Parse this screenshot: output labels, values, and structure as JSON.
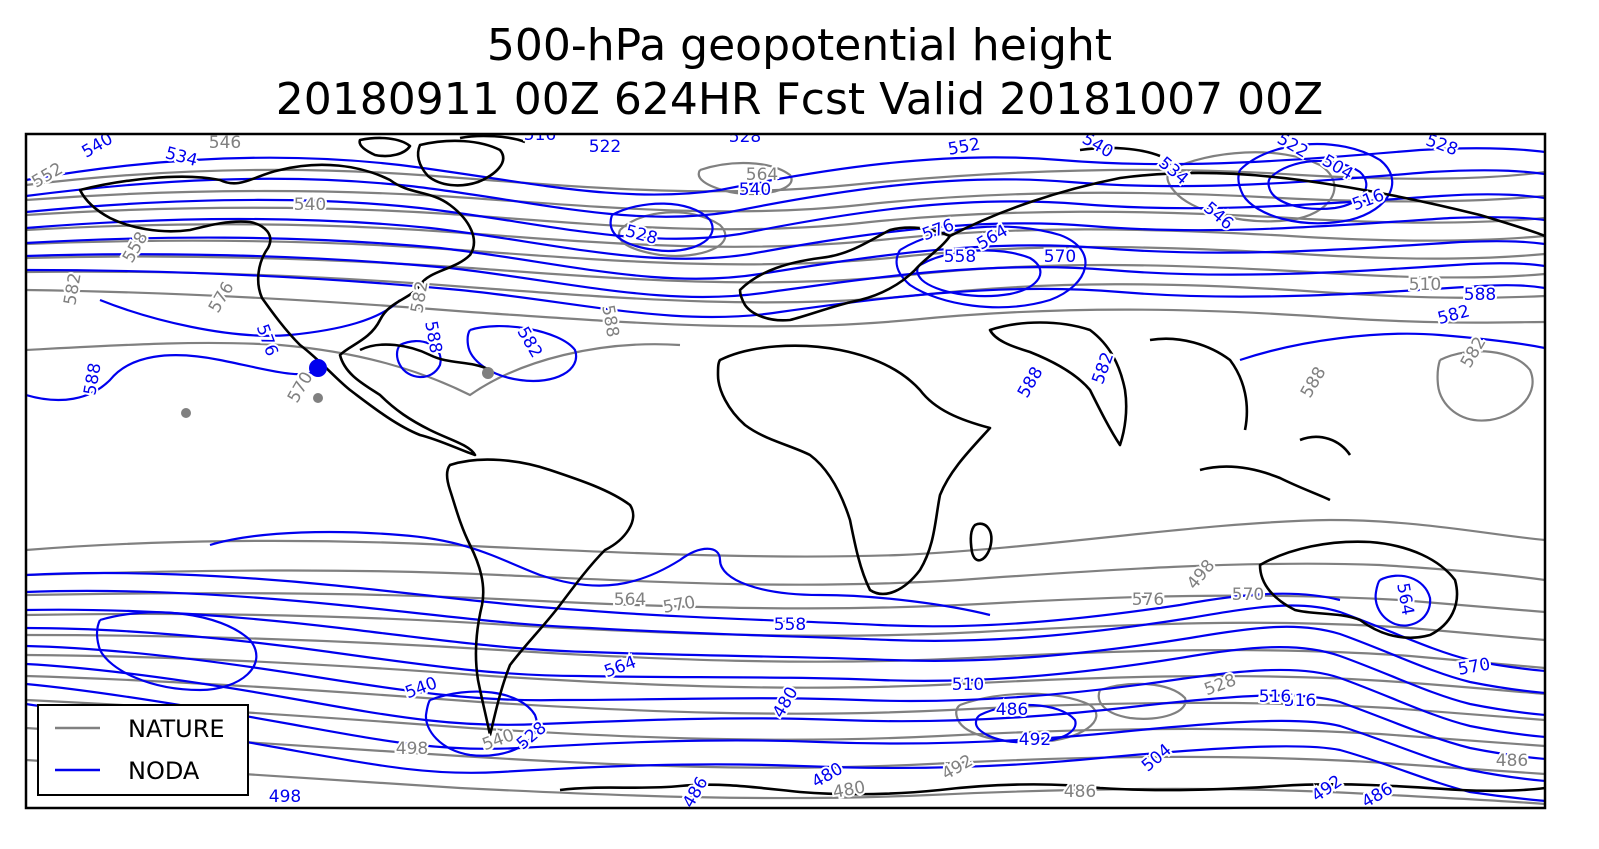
{
  "title_line1": "500-hPa geopotential height",
  "title_line2": "20180911 00Z 624HR Fcst Valid 20181007 00Z",
  "legend": [
    {
      "label": "NATURE",
      "color": "#808080"
    },
    {
      "label": "NODA",
      "color": "#0000ee"
    }
  ],
  "colors": {
    "nature": "#808080",
    "noda": "#0000ee",
    "coast": "#000000"
  },
  "contour_labels": {
    "noda": [
      "540",
      "534",
      "516",
      "522",
      "528",
      "540",
      "552",
      "540",
      "534",
      "546",
      "528",
      "504",
      "516",
      "522",
      "528",
      "576",
      "564",
      "558",
      "570",
      "576",
      "588",
      "582",
      "588",
      "588",
      "582",
      "588",
      "582",
      "564",
      "510",
      "540",
      "516",
      "528",
      "486",
      "492",
      "480",
      "486",
      "492",
      "504",
      "498",
      "480",
      "486",
      "516",
      "564",
      "570",
      "558"
    ],
    "nature": [
      "582",
      "576",
      "570",
      "588",
      "582",
      "564",
      "558",
      "552",
      "546",
      "540",
      "498",
      "486",
      "492",
      "480",
      "486",
      "498",
      "570",
      "564",
      "588",
      "582",
      "576",
      "570",
      "528",
      "540",
      "510"
    ]
  }
}
